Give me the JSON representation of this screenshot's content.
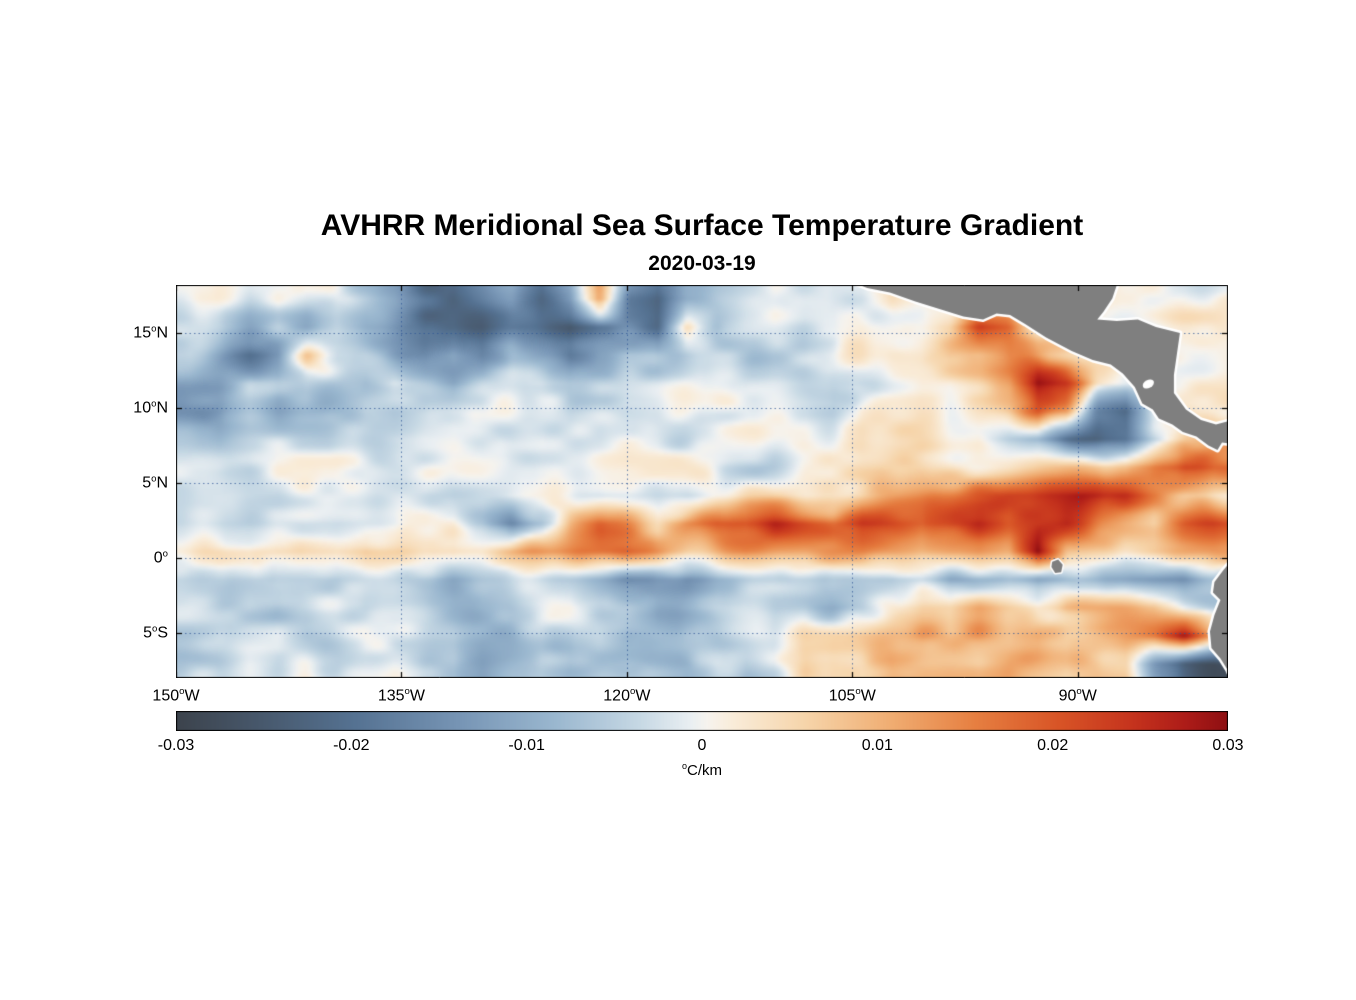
{
  "chart_data": {
    "type": "heatmap",
    "title": "AVHRR Meridional Sea Surface Temperature Gradient",
    "subtitle": "2020-03-19",
    "colorbar_label": "°C/km",
    "value_range": [
      -0.03,
      0.03
    ],
    "lon_range_degW": [
      150,
      80
    ],
    "lat_range_degN": [
      18.2,
      -8
    ],
    "x_ticks": [
      {
        "label": "150°W",
        "value": 150
      },
      {
        "label": "135°W",
        "value": 135
      },
      {
        "label": "120°W",
        "value": 120
      },
      {
        "label": "105°W",
        "value": 105
      },
      {
        "label": "90°W",
        "value": 90
      }
    ],
    "y_ticks": [
      {
        "label": "15°N",
        "value": 15
      },
      {
        "label": "10°N",
        "value": 10
      },
      {
        "label": "5°N",
        "value": 5
      },
      {
        "label": "0°",
        "value": 0
      },
      {
        "label": "5°S",
        "value": -5
      }
    ],
    "colorbar_ticks": [
      {
        "label": "-0.03",
        "value": -0.03
      },
      {
        "label": "-0.02",
        "value": -0.02
      },
      {
        "label": "-0.01",
        "value": -0.01
      },
      {
        "label": "0",
        "value": 0
      },
      {
        "label": "0.01",
        "value": 0.01
      },
      {
        "label": "0.02",
        "value": 0.02
      },
      {
        "label": "0.03",
        "value": 0.03
      }
    ],
    "colormap_stops": [
      [
        0.0,
        "#3c434c"
      ],
      [
        0.08,
        "#47586c"
      ],
      [
        0.17,
        "#557292"
      ],
      [
        0.27,
        "#7795b5"
      ],
      [
        0.36,
        "#9ab7cf"
      ],
      [
        0.44,
        "#c6d8e4"
      ],
      [
        0.49,
        "#eaeff2"
      ],
      [
        0.505,
        "#f6f3ee"
      ],
      [
        0.53,
        "#f9ecd9"
      ],
      [
        0.6,
        "#f6d4a9"
      ],
      [
        0.68,
        "#f0ad72"
      ],
      [
        0.76,
        "#e67f41"
      ],
      [
        0.84,
        "#d85426"
      ],
      [
        0.91,
        "#c5331d"
      ],
      [
        0.96,
        "#ad1c18"
      ],
      [
        1.0,
        "#8e0f12"
      ]
    ],
    "grid_color": "#2d5596",
    "land_color": "#7f7f7f",
    "grid_scale": 0.001,
    "values_lat_rows_north_to_south": [
      [
        -3,
        -2,
        -5,
        -3,
        -6,
        -4,
        -8,
        -12,
        -20,
        -22,
        -16,
        -10,
        -18,
        -10,
        14,
        -16,
        -20,
        -8,
        -4,
        -2,
        0,
        -3,
        -4,
        -2,
        5,
        0,
        0,
        0,
        0,
        0,
        0,
        0,
        0,
        0,
        0,
        0
      ],
      [
        -6,
        -4,
        -8,
        -5,
        -10,
        -6,
        -14,
        -18,
        -24,
        -20,
        -22,
        -18,
        -20,
        -24,
        -18,
        -16,
        -18,
        8,
        -6,
        -3,
        -2,
        -4,
        -3,
        2,
        4,
        6,
        10,
        25,
        18,
        0,
        0,
        0,
        0,
        0,
        0,
        0
      ],
      [
        -6,
        -10,
        -16,
        -12,
        6,
        -4,
        -8,
        -16,
        -20,
        -12,
        -18,
        -8,
        -14,
        -18,
        -8,
        -4,
        -6,
        -3,
        -2,
        -2,
        -3,
        -5,
        -2,
        3,
        5,
        4,
        8,
        6,
        12,
        8,
        4,
        0,
        0,
        0,
        0,
        0
      ],
      [
        -10,
        -12,
        -6,
        -8,
        -3,
        -5,
        -8,
        -4,
        -10,
        -14,
        -8,
        -5,
        -3,
        -6,
        -4,
        -2,
        -3,
        -2,
        -2,
        -3,
        -2,
        -3,
        -4,
        -2,
        2,
        4,
        3,
        6,
        10,
        28,
        22,
        5,
        0,
        0,
        0,
        0
      ],
      [
        -14,
        -16,
        -10,
        -12,
        -8,
        -6,
        -4,
        -8,
        -6,
        -3,
        -4,
        -2,
        -3,
        -5,
        -2,
        -2,
        -3,
        -2,
        -2,
        -2,
        -3,
        -2,
        -3,
        3,
        2,
        3,
        2,
        4,
        8,
        20,
        12,
        -18,
        -22,
        0,
        0,
        0
      ],
      [
        -8,
        -10,
        -6,
        -4,
        -3,
        -2,
        -4,
        -3,
        -2,
        -2,
        -3,
        -4,
        -2,
        -3,
        -4,
        -2,
        -2,
        -3,
        -2,
        -2,
        -2,
        -2,
        -2,
        2,
        2,
        3,
        2,
        3,
        -4,
        -8,
        -20,
        -26,
        -22,
        -8,
        5,
        12
      ],
      [
        -4,
        -3,
        -5,
        -2,
        -3,
        -2,
        -2,
        -3,
        -2,
        -2,
        -2,
        -3,
        -2,
        -2,
        -3,
        -2,
        -2,
        -2,
        -2,
        -2,
        -2,
        2,
        2,
        3,
        3,
        4,
        4,
        5,
        6,
        8,
        10,
        12,
        10,
        18,
        26,
        20
      ],
      [
        -3,
        -2,
        -2,
        -3,
        -2,
        -2,
        -2,
        -2,
        -2,
        -3,
        -2,
        -2,
        -3,
        -2,
        -4,
        -2,
        -2,
        -2,
        2,
        3,
        3,
        4,
        5,
        6,
        8,
        10,
        14,
        18,
        22,
        26,
        28,
        30,
        26,
        18,
        10,
        6
      ],
      [
        -2,
        -2,
        -3,
        -2,
        -2,
        -3,
        -2,
        -2,
        3,
        4,
        -3,
        -18,
        -10,
        6,
        16,
        12,
        8,
        18,
        22,
        20,
        24,
        22,
        18,
        24,
        20,
        16,
        22,
        26,
        20,
        24,
        26,
        18,
        12,
        8,
        20,
        24
      ],
      [
        4,
        6,
        5,
        8,
        6,
        5,
        8,
        6,
        5,
        8,
        6,
        8,
        10,
        12,
        16,
        18,
        14,
        10,
        12,
        14,
        12,
        10,
        12,
        14,
        12,
        10,
        14,
        16,
        12,
        30,
        8,
        6,
        5,
        8,
        10,
        12
      ],
      [
        -4,
        -3,
        -5,
        -3,
        -4,
        -6,
        -4,
        -3,
        -6,
        -8,
        -5,
        -4,
        -6,
        -8,
        -10,
        -14,
        -12,
        -16,
        -10,
        -8,
        -6,
        -8,
        -5,
        -6,
        -8,
        -6,
        -10,
        -8,
        -6,
        -12,
        -8,
        -6,
        -10,
        -14,
        -18,
        -10
      ],
      [
        -3,
        -5,
        -3,
        -6,
        -4,
        -3,
        -6,
        -4,
        -3,
        -5,
        -4,
        -8,
        -6,
        -4,
        -8,
        -6,
        -10,
        -6,
        -4,
        -6,
        -8,
        -4,
        -6,
        -3,
        5,
        8,
        6,
        10,
        8,
        6,
        12,
        10,
        8,
        6,
        -4,
        -8
      ],
      [
        -5,
        -3,
        -6,
        -4,
        -8,
        -5,
        -3,
        -6,
        -4,
        -3,
        -6,
        -8,
        -4,
        -6,
        -3,
        -8,
        -6,
        -4,
        -8,
        -6,
        -4,
        6,
        8,
        10,
        12,
        14,
        10,
        12,
        8,
        10,
        6,
        8,
        12,
        16,
        28,
        10
      ],
      [
        -4,
        -6,
        -3,
        -5,
        -3,
        -6,
        -4,
        -3,
        -6,
        -4,
        -8,
        -5,
        -3,
        -6,
        -4,
        -3,
        -6,
        -8,
        -4,
        -6,
        -3,
        8,
        10,
        8,
        12,
        10,
        8,
        6,
        10,
        8,
        6,
        10,
        8,
        -10,
        -24,
        -28
      ]
    ],
    "land_polygons_lonW_lat": {
      "central_america": [
        [
          105.3,
          18.5
        ],
        [
          87.3,
          18.5
        ],
        [
          87.7,
          17.3
        ],
        [
          88.3,
          16.4
        ],
        [
          88.7,
          15.9
        ],
        [
          87.4,
          15.8
        ],
        [
          86.0,
          15.9
        ],
        [
          84.8,
          15.4
        ],
        [
          83.2,
          15.0
        ],
        [
          83.4,
          13.6
        ],
        [
          83.6,
          12.2
        ],
        [
          83.6,
          11.0
        ],
        [
          82.8,
          9.9
        ],
        [
          81.8,
          9.2
        ],
        [
          80.8,
          8.9
        ],
        [
          79.7,
          9.2
        ],
        [
          79.7,
          7.6
        ],
        [
          80.4,
          7.7
        ],
        [
          80.7,
          7.2
        ],
        [
          81.3,
          7.5
        ],
        [
          82.1,
          8.1
        ],
        [
          83.0,
          8.4
        ],
        [
          83.7,
          8.9
        ],
        [
          84.6,
          9.3
        ],
        [
          85.0,
          9.9
        ],
        [
          85.7,
          10.3
        ],
        [
          86.2,
          11.4
        ],
        [
          87.0,
          12.3
        ],
        [
          87.8,
          12.9
        ],
        [
          89.0,
          13.2
        ],
        [
          90.4,
          13.8
        ],
        [
          92.1,
          14.7
        ],
        [
          93.5,
          15.6
        ],
        [
          94.5,
          16.2
        ],
        [
          95.4,
          16.3
        ],
        [
          96.3,
          15.9
        ],
        [
          97.6,
          16.1
        ],
        [
          99.2,
          16.6
        ],
        [
          100.8,
          17.1
        ],
        [
          102.5,
          17.7
        ],
        [
          104.0,
          18.0
        ]
      ],
      "south_america": [
        [
          79.7,
          -0.1
        ],
        [
          80.3,
          -0.8
        ],
        [
          80.9,
          -1.6
        ],
        [
          81.0,
          -2.3
        ],
        [
          80.5,
          -2.8
        ],
        [
          80.9,
          -3.8
        ],
        [
          81.2,
          -4.9
        ],
        [
          81.1,
          -6.0
        ],
        [
          80.5,
          -6.7
        ],
        [
          80.0,
          -7.5
        ],
        [
          79.7,
          -8.3
        ]
      ],
      "galapagos": [
        [
          91.7,
          -0.25
        ],
        [
          91.3,
          -0.1
        ],
        [
          91.0,
          -0.45
        ],
        [
          91.1,
          -0.95
        ],
        [
          91.5,
          -1.0
        ],
        [
          91.75,
          -0.6
        ]
      ]
    },
    "lakes_lonW_lat": [
      [
        85.3,
        11.6
      ]
    ]
  }
}
